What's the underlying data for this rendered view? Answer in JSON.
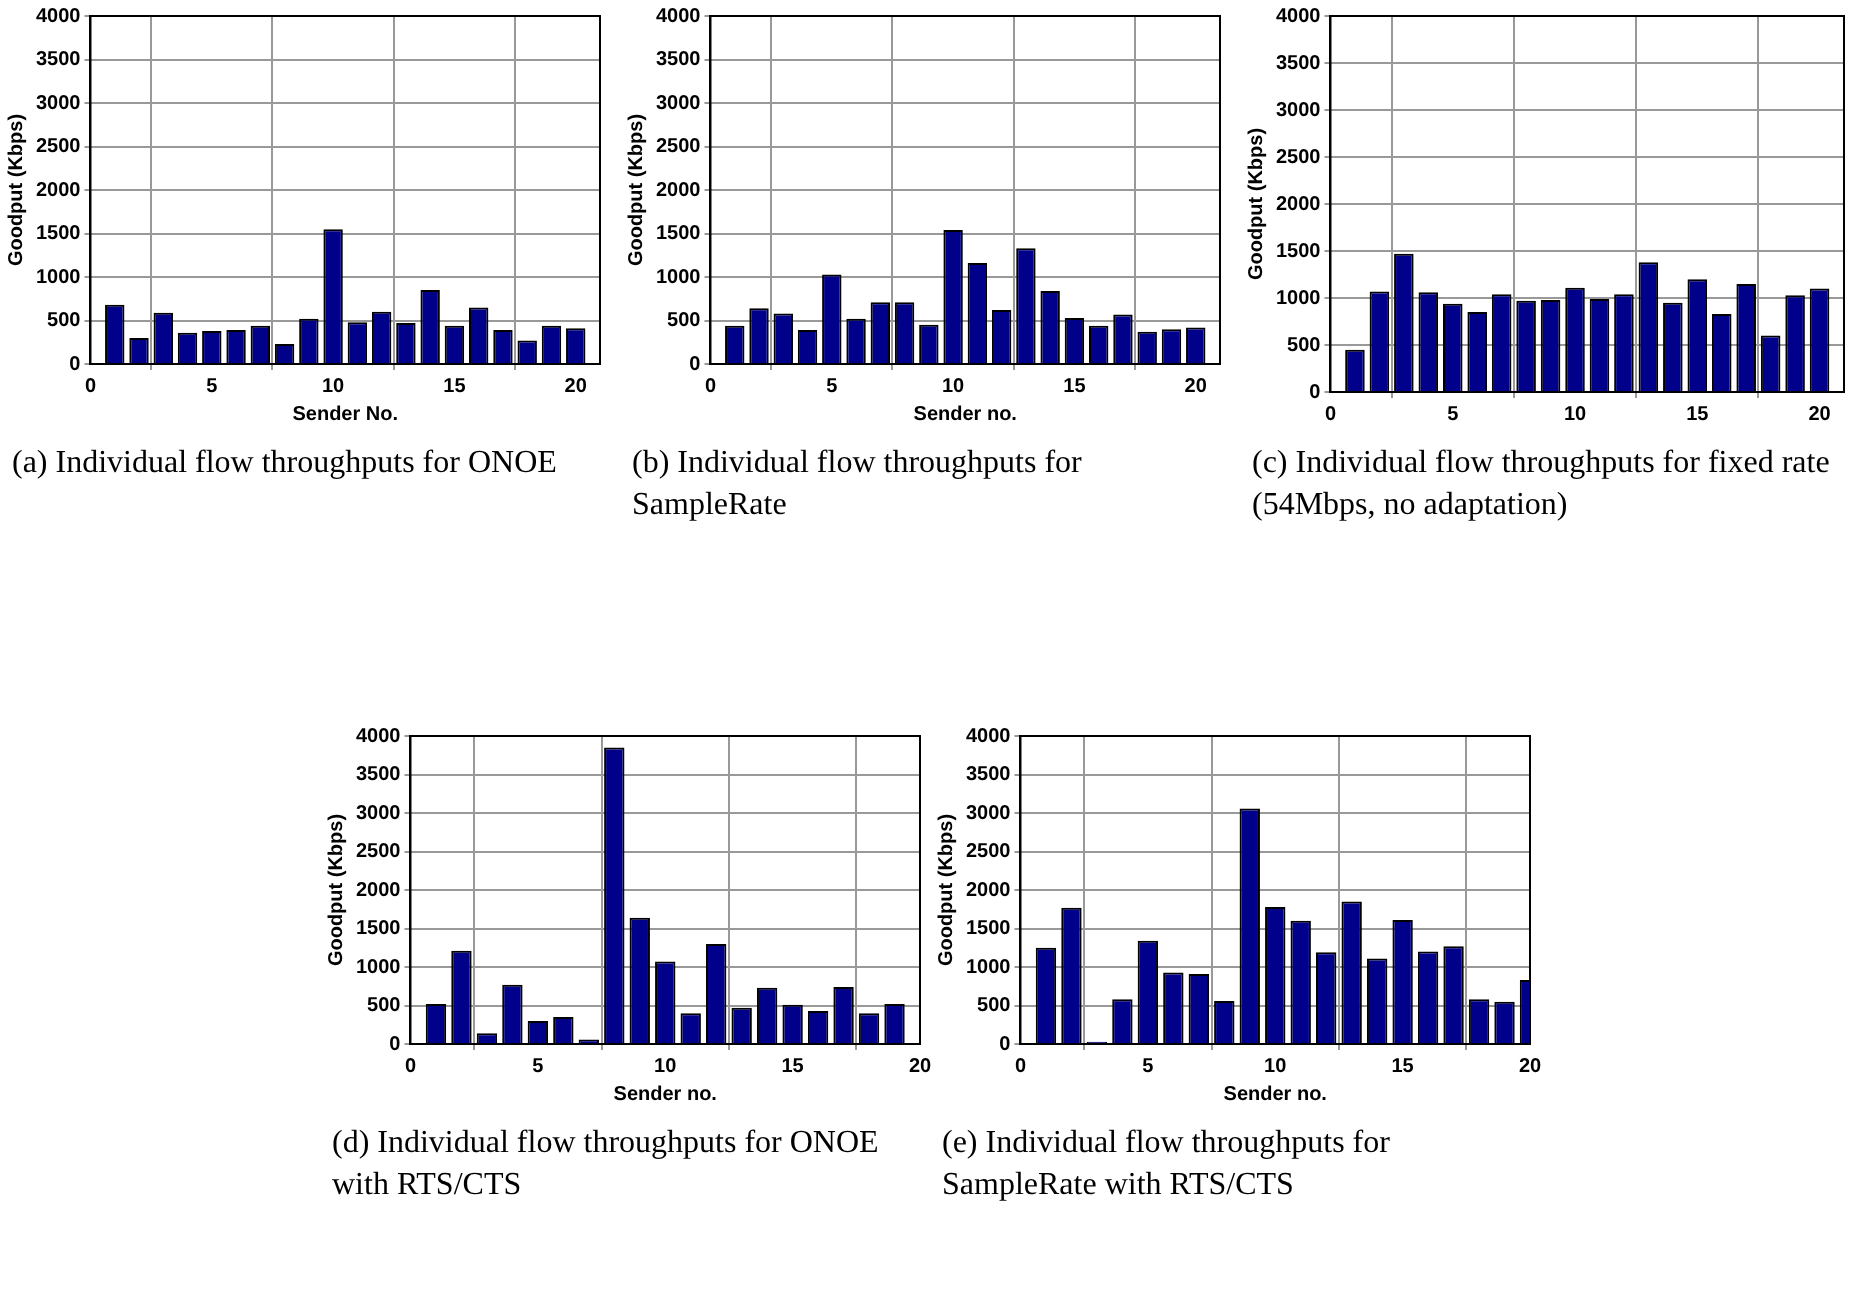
{
  "chart_data": [
    {
      "type": "bar",
      "title": "(a) Individual flow throughputs for ONOE",
      "xlabel": "Sender No.",
      "ylabel": "Goodput (Kbps)",
      "x": [
        1,
        2,
        3,
        4,
        5,
        6,
        7,
        8,
        9,
        10,
        11,
        12,
        13,
        14,
        15,
        16,
        17,
        18,
        19,
        20
      ],
      "values": [
        680,
        300,
        590,
        360,
        380,
        390,
        440,
        230,
        520,
        1550,
        480,
        600,
        470,
        850,
        440,
        650,
        390,
        270,
        440,
        410
      ],
      "color": "#00008b",
      "xlim": [
        0,
        21
      ],
      "xticks": [
        0,
        5,
        10,
        15,
        20
      ],
      "ylim": [
        0,
        4000
      ],
      "yticks": [
        0,
        500,
        1000,
        1500,
        2000,
        2500,
        3000,
        3500,
        4000
      ],
      "grid": true,
      "legend": false
    },
    {
      "type": "bar",
      "title": "(b) Individual flow throughputs for SampleRate",
      "xlabel": "Sender no.",
      "ylabel": "Goodput (Kbps)",
      "x": [
        1,
        2,
        3,
        4,
        5,
        6,
        7,
        8,
        9,
        10,
        11,
        12,
        13,
        14,
        15,
        16,
        17,
        18,
        19,
        20
      ],
      "values": [
        440,
        640,
        580,
        390,
        1030,
        520,
        710,
        710,
        450,
        1540,
        1160,
        620,
        1330,
        840,
        530,
        440,
        570,
        370,
        400,
        420
      ],
      "color": "#00008b",
      "xlim": [
        0,
        21
      ],
      "xticks": [
        0,
        5,
        10,
        15,
        20
      ],
      "ylim": [
        0,
        4000
      ],
      "yticks": [
        0,
        500,
        1000,
        1500,
        2000,
        2500,
        3000,
        3500,
        4000
      ],
      "grid": true,
      "legend": false
    },
    {
      "type": "bar",
      "title": "(c) Individual flow throughputs for fixed rate (54Mbps, no adaptation)",
      "ylabel": "Goodput (Kbps)",
      "x": [
        1,
        2,
        3,
        4,
        5,
        6,
        7,
        8,
        9,
        10,
        11,
        12,
        13,
        14,
        15,
        16,
        17,
        18,
        19,
        20
      ],
      "values": [
        450,
        1070,
        1470,
        1060,
        940,
        850,
        1040,
        970,
        980,
        1110,
        990,
        1040,
        1380,
        950,
        1200,
        830,
        1150,
        600,
        1030,
        1100
      ],
      "color": "#00008b",
      "xlim": [
        0,
        21
      ],
      "xticks": [
        0,
        5,
        10,
        15,
        20
      ],
      "ylim": [
        0,
        4000
      ],
      "yticks": [
        0,
        500,
        1000,
        1500,
        2000,
        2500,
        3000,
        3500,
        4000
      ],
      "grid": true,
      "legend": false
    },
    {
      "type": "bar",
      "title": "(d) Individual flow throughputs for ONOE with RTS/CTS",
      "xlabel": "Sender no.",
      "ylabel": "Goodput (Kbps)",
      "x": [
        1,
        2,
        3,
        4,
        5,
        6,
        7,
        8,
        9,
        10,
        11,
        12,
        13,
        14,
        15,
        16,
        17,
        18,
        19
      ],
      "values": [
        520,
        1210,
        140,
        770,
        300,
        350,
        60,
        3850,
        1640,
        1070,
        400,
        1300,
        470,
        730,
        510,
        430,
        740,
        400,
        520
      ],
      "color": "#00008b",
      "xlim": [
        0,
        20
      ],
      "xticks": [
        0,
        5,
        10,
        15,
        20
      ],
      "ylim": [
        0,
        4000
      ],
      "yticks": [
        0,
        500,
        1000,
        1500,
        2000,
        2500,
        3000,
        3500,
        4000
      ],
      "grid": true,
      "legend": false
    },
    {
      "type": "bar",
      "title": "(e) Individual flow throughputs for SampleRate with RTS/CTS",
      "xlabel": "Sender no.",
      "ylabel": "Goodput (Kbps)",
      "x": [
        1,
        2,
        3,
        4,
        5,
        6,
        7,
        8,
        9,
        10,
        11,
        12,
        13,
        14,
        15,
        16,
        17,
        18,
        19,
        20
      ],
      "values": [
        1250,
        1770,
        30,
        580,
        1340,
        930,
        910,
        560,
        3060,
        1780,
        1600,
        1190,
        1850,
        1110,
        1610,
        1200,
        1270,
        580,
        550,
        830
      ],
      "color": "#00008b",
      "xlim": [
        0,
        20
      ],
      "xticks": [
        0,
        5,
        10,
        15,
        20
      ],
      "ylim": [
        0,
        4000
      ],
      "yticks": [
        0,
        500,
        1000,
        1500,
        2000,
        2500,
        3000,
        3500,
        4000
      ],
      "grid": true,
      "legend": false
    }
  ]
}
